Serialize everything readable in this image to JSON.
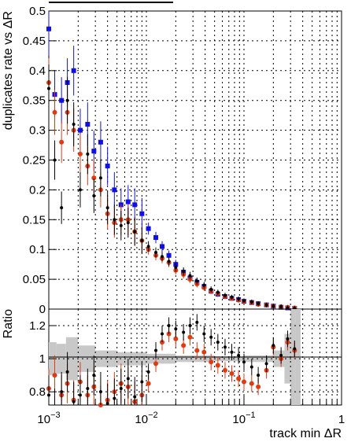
{
  "chart_data": [
    {
      "panel": "main",
      "type": "scatter",
      "ylabel": "duplicates rate vs ΔR",
      "xlabel": "",
      "xscale": "log",
      "xlim": [
        0.001,
        1
      ],
      "ylim": [
        0,
        0.5
      ],
      "grid": true,
      "yticks": [
        "0",
        "0.05",
        "0.1",
        "0.15",
        "0.2",
        "0.25",
        "0.3",
        "0.35",
        "0.4",
        "0.45",
        "0.5"
      ],
      "colors": {
        "blue": "#1010e6",
        "red": "#e23a0e",
        "black": "#000000"
      },
      "series": [
        {
          "color": "#1010e6",
          "x": [
            0.001,
            0.00115,
            0.00135,
            0.00155,
            0.0018,
            0.0021,
            0.0025,
            0.0029,
            0.0034,
            0.004,
            0.0047,
            0.0055,
            0.0065,
            0.0076,
            0.009,
            0.0105,
            0.0125,
            0.0145,
            0.017,
            0.02,
            0.024,
            0.028,
            0.033,
            0.039,
            0.046,
            0.054,
            0.064,
            0.075,
            0.088,
            0.1,
            0.12,
            0.14,
            0.17,
            0.2,
            0.24,
            0.28,
            0.33
          ],
          "y": [
            0.47,
            0.36,
            0.35,
            0.38,
            0.4,
            0.3,
            0.31,
            0.265,
            0.28,
            0.24,
            0.2,
            0.175,
            0.18,
            0.175,
            0.16,
            0.135,
            0.12,
            0.105,
            0.09,
            0.075,
            0.062,
            0.052,
            0.045,
            0.038,
            0.03,
            0.025,
            0.021,
            0.018,
            0.016,
            0.013,
            0.011,
            0.009,
            0.007,
            0.005,
            0.003,
            0.002,
            0.001
          ]
        },
        {
          "color": "#e23a0e",
          "x": [
            0.001,
            0.00115,
            0.00135,
            0.00155,
            0.0018,
            0.0021,
            0.0025,
            0.0029,
            0.0034,
            0.004,
            0.0047,
            0.0055,
            0.0065,
            0.0076,
            0.009,
            0.0105,
            0.0125,
            0.0145,
            0.017,
            0.02,
            0.024,
            0.028,
            0.033,
            0.039,
            0.046,
            0.054,
            0.064,
            0.075,
            0.088,
            0.1,
            0.12,
            0.14,
            0.17,
            0.2,
            0.24,
            0.28,
            0.33
          ],
          "y": [
            0.38,
            0.33,
            0.28,
            0.33,
            0.3,
            0.26,
            0.24,
            0.22,
            0.2,
            0.16,
            0.145,
            0.15,
            0.15,
            0.13,
            0.115,
            0.1,
            0.09,
            0.085,
            0.078,
            0.065,
            0.058,
            0.05,
            0.042,
            0.036,
            0.03,
            0.026,
            0.021,
            0.018,
            0.015,
            0.013,
            0.011,
            0.008,
            0.007,
            0.005,
            0.004,
            0.003,
            0.002
          ]
        },
        {
          "color": "#000000",
          "x": [
            0.001,
            0.00115,
            0.00135,
            0.00155,
            0.0018,
            0.0021,
            0.0025,
            0.0029,
            0.0034,
            0.004,
            0.0047,
            0.0055,
            0.0065,
            0.0076,
            0.009,
            0.0105,
            0.0125,
            0.0145,
            0.017,
            0.02,
            0.024,
            0.028,
            0.033,
            0.039,
            0.046,
            0.054,
            0.064,
            0.075,
            0.088,
            0.1,
            0.12,
            0.14,
            0.17,
            0.2,
            0.24,
            0.28,
            0.33
          ],
          "y": [
            0.37,
            0.25,
            0.17,
            0.35,
            0.31,
            0.2,
            0.26,
            0.19,
            0.22,
            0.17,
            0.15,
            0.14,
            0.145,
            0.13,
            0.115,
            0.105,
            0.095,
            0.088,
            0.08,
            0.07,
            0.063,
            0.056,
            0.047,
            0.04,
            0.033,
            0.028,
            0.023,
            0.02,
            0.017,
            0.014,
            0.012,
            0.009,
            0.007,
            0.005,
            0.004,
            0.002,
            0.001
          ]
        }
      ]
    },
    {
      "panel": "ratio",
      "type": "scatter",
      "ylabel": "Ratio",
      "xlabel": "track min ΔR",
      "xscale": "log",
      "xlim": [
        0.001,
        1
      ],
      "ylim": [
        0.72,
        1.3
      ],
      "grid": true,
      "xticks": [
        {
          "value": 0.001,
          "base": "10",
          "exp": "−3"
        },
        {
          "value": 0.01,
          "base": "10",
          "exp": "−2"
        },
        {
          "value": 0.1,
          "base": "10",
          "exp": "−1"
        },
        {
          "value": 1,
          "base": "1",
          "exp": ""
        }
      ],
      "yticks": [
        "0.8",
        "1",
        "1.2"
      ],
      "series": [
        {
          "color": "#e23a0e",
          "x": [
            0.001,
            0.00115,
            0.00135,
            0.00155,
            0.0018,
            0.0021,
            0.0025,
            0.0029,
            0.0034,
            0.004,
            0.0047,
            0.0055,
            0.0065,
            0.0076,
            0.009,
            0.0105,
            0.0125,
            0.0145,
            0.017,
            0.02,
            0.024,
            0.028,
            0.033,
            0.039,
            0.046,
            0.054,
            0.064,
            0.075,
            0.088,
            0.1,
            0.12,
            0.14,
            0.17,
            0.2,
            0.24,
            0.28,
            0.33
          ],
          "y": [
            0.82,
            0.9,
            0.78,
            0.85,
            0.75,
            0.86,
            0.78,
            0.83,
            0.72,
            0.75,
            0.8,
            0.85,
            0.83,
            0.74,
            0.78,
            0.85,
            0.97,
            1.1,
            1.15,
            1.12,
            1.08,
            1.13,
            1.05,
            1.04,
            0.98,
            0.96,
            0.93,
            0.91,
            0.88,
            0.86,
            0.85,
            0.83,
            0.93,
            1.07,
            1.0,
            1.1,
            1.05
          ]
        },
        {
          "color": "#000000",
          "x": [
            0.001,
            0.00115,
            0.00135,
            0.00155,
            0.0018,
            0.0021,
            0.0025,
            0.0029,
            0.0034,
            0.004,
            0.0047,
            0.0055,
            0.0065,
            0.0076,
            0.009,
            0.0105,
            0.0125,
            0.0145,
            0.017,
            0.02,
            0.024,
            0.028,
            0.033,
            0.039,
            0.046,
            0.054,
            0.064,
            0.075,
            0.088,
            0.1,
            0.12,
            0.14,
            0.17,
            0.2,
            0.24,
            0.28,
            0.33
          ],
          "y": [
            0.78,
            0.7,
            0.8,
            0.92,
            0.74,
            0.78,
            0.82,
            0.9,
            0.8,
            0.73,
            0.76,
            0.82,
            0.88,
            0.77,
            0.86,
            0.92,
            1.05,
            1.15,
            1.2,
            1.18,
            1.16,
            1.2,
            1.22,
            1.15,
            1.13,
            1.1,
            1.07,
            1.04,
            1.02,
            0.98,
            0.95,
            0.9,
            0.97,
            1.08,
            1.02,
            1.12,
            1.06
          ]
        }
      ]
    }
  ]
}
